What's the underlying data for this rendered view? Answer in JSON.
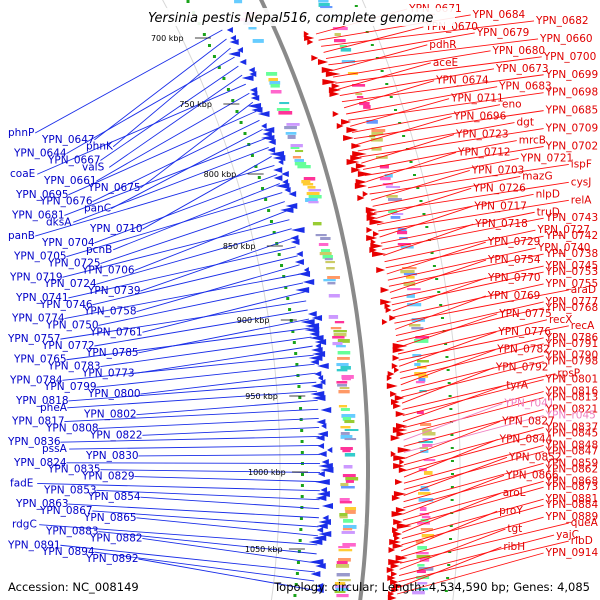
{
  "title": "Yersinia pestis Nepal516, complete genome",
  "footer": {
    "accession": "Accession: NC_008149",
    "summary": "Topology: circular; Length: 4,534,590 bp; Genes: 4,085"
  },
  "colors": {
    "left_genes": "#0000c8",
    "right_genes": "#e00000",
    "rna_genes": "#f080c0",
    "backbone": "#8a8a8a"
  },
  "kbp_marks": [
    "700 kbp",
    "750 kbp",
    "800 kbp",
    "850 kbp",
    "900 kbp",
    "950 kbp",
    "1000 kbp",
    "1050 kbp"
  ],
  "left_labels": [
    "phnP",
    "YPN_0647",
    "phnK",
    "YPN_0644",
    "YPN_0667",
    "valS",
    "coaE",
    "YPN_0661",
    "YPN_0675",
    "YPN_0695",
    "YPN_0676",
    "panC",
    "YPN_0681",
    "dksA",
    "YPN_0710",
    "panB",
    "YPN_0704",
    "pcnB",
    "YPN_0705",
    "YPN_0725",
    "YPN_0706",
    "YPN_0719",
    "YPN_0724",
    "YPN_0739",
    "YPN_0741",
    "YPN_0746",
    "YPN_0758",
    "YPN_0774",
    "YPN_0750",
    "YPN_0761",
    "YPN_0757",
    "YPN_0772",
    "YPN_0785",
    "YPN_0765",
    "YPN_0783",
    "YPN_0773",
    "YPN_0784",
    "YPN_0799",
    "YPN_0800",
    "YPN_0818",
    "pheA",
    "YPN_0802",
    "YPN_0817",
    "YPN_0808",
    "YPN_0822",
    "YPN_0836",
    "pssA",
    "YPN_0830",
    "YPN_0824",
    "YPN_0835",
    "YPN_0829",
    "fadE",
    "YPN_0853",
    "YPN_0854",
    "YPN_0863",
    "YPN_0867",
    "YPN_0865",
    "rdgC",
    "YPN_0883",
    "YPN_0882",
    "YPN_0891",
    "YPN_0894",
    "YPN_0892"
  ],
  "right_labels": [
    "YPN_0671",
    "YPN_0684",
    "YPN_0682",
    "YPN_0670",
    "YPN_0679",
    "YPN_0660",
    "pdhR",
    "YPN_0680",
    "YPN_0700",
    "aceE",
    "YPN_0673",
    "YPN_0699",
    "YPN_0674",
    "YPN_0683",
    "YPN_0698",
    "YPN_0711",
    "eno",
    "YPN_0685",
    "YPN_0696",
    "dgt",
    "YPN_0709",
    "YPN_0723",
    "mrcB",
    "YPN_0702",
    "YPN_0712",
    "YPN_0721",
    "ispF",
    "YPN_0703",
    "mazG",
    "cysJ",
    "YPN_0726",
    "nlpD",
    "relA",
    "YPN_0717",
    "truD",
    "YPN_0743",
    "YPN_0718",
    "YPN_0727",
    "YPN_0742",
    "YPN_0729",
    "YPN_0740",
    "YPN_0738",
    "YPN_0754",
    "YPN_0745",
    "YPN_0753",
    "YPN_0770",
    "YPN_0755",
    "araD",
    "YPN_0769",
    "YPN_0777",
    "YPN_0768",
    "YPN_0775",
    "recX",
    "recA",
    "YPN_0776",
    "YPN_0786",
    "YPN_0791",
    "YPN_0782",
    "YPN_0790",
    "YPN_0798",
    "YPN_0792",
    "rpsP",
    "YPN_0801",
    "tyrA",
    "YPN_0816",
    "YPN_0813",
    "YPN_r041",
    "YPN_0821",
    "YPN_r045",
    "YPN_0827",
    "YPN_0837",
    "YPN_0845",
    "YPN_0844",
    "YPN_0848",
    "YPN_0847",
    "YPN_0852",
    "YPN_0859",
    "YPN_0862",
    "YPN_0866",
    "YPN_0868",
    "YPN_0873",
    "aroL",
    "YPN_0881",
    "YPN_0884",
    "proY",
    "YPN_0889",
    "queA",
    "tgt",
    "yajC",
    "ribD",
    "ribH",
    "YPN_0914"
  ]
}
